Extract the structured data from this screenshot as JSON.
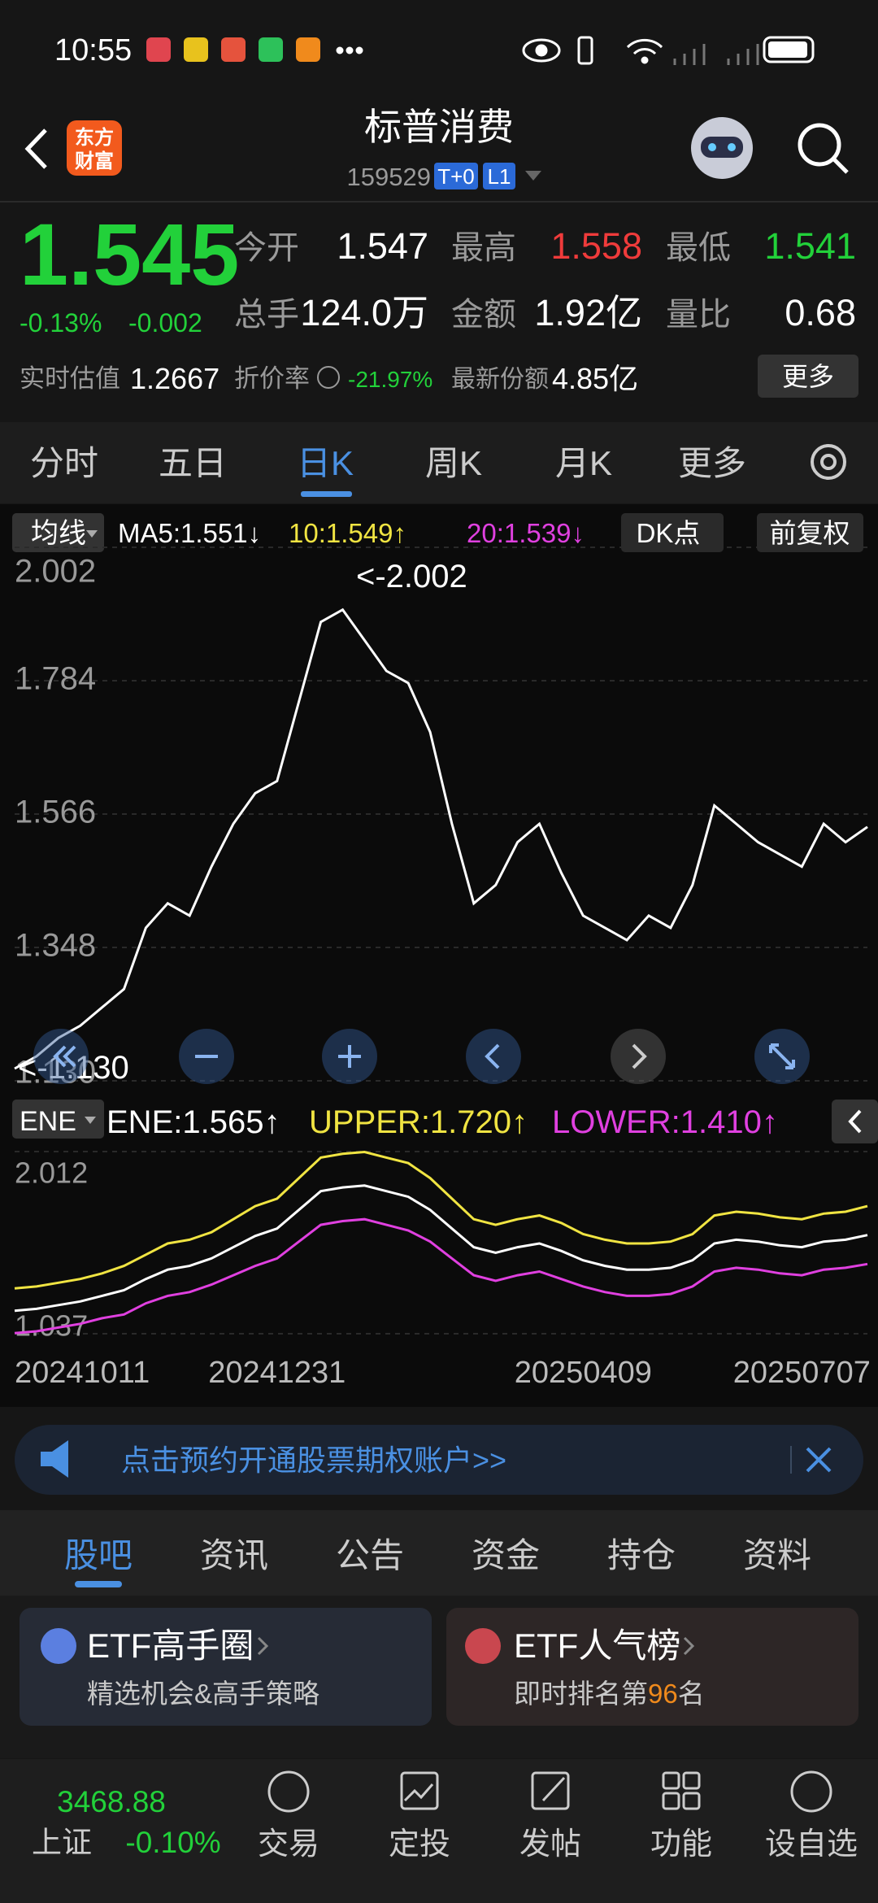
{
  "status_bar": {
    "time": "10:55"
  },
  "header": {
    "logo": [
      "东方",
      "财富"
    ],
    "title": "标普消费",
    "code": "159529",
    "badges": [
      "T+0",
      "L1"
    ]
  },
  "quote": {
    "price": "1.545",
    "change_pct": "-0.13%",
    "change": "-0.002",
    "fields": [
      {
        "label": "今开",
        "value": "1.547"
      },
      {
        "label": "最高",
        "value": "1.558"
      },
      {
        "label": "最低",
        "value": "1.541"
      },
      {
        "label": "总手",
        "value": "124.0万"
      },
      {
        "label": "金额",
        "value": "1.92亿"
      },
      {
        "label": "量比",
        "value": "0.68"
      }
    ],
    "estimate": {
      "label": "实时估值",
      "value": "1.2667"
    },
    "discount": {
      "label": "折价率",
      "value": "-21.97%"
    },
    "shares": {
      "label": "最新份额",
      "value": "4.85亿"
    },
    "more": "更多"
  },
  "period_tabs": [
    "分时",
    "五日",
    "日K",
    "周K",
    "月K",
    "更多"
  ],
  "indicator_bar": {
    "ma_button": "均线",
    "ma5": "MA5:1.551↓",
    "ma10": "10:1.549↑",
    "ma20": "20:1.539↓",
    "dk": "DK点",
    "adjust": "前复权"
  },
  "ene_bar": {
    "button": "ENE",
    "ene": "ENE:1.565↑",
    "upper": "UPPER:1.720↑",
    "lower": "LOWER:1.410↑"
  },
  "chart_data": [
    {
      "type": "line",
      "color": "#ffffff",
      "values": [
        1.15,
        1.17,
        1.2,
        1.22,
        1.25,
        1.28,
        1.38,
        1.42,
        1.4,
        1.48,
        1.55,
        1.6,
        1.62,
        1.75,
        1.88,
        1.9,
        1.85,
        1.8,
        1.78,
        1.7,
        1.55,
        1.42,
        1.45,
        1.52,
        1.55,
        1.47,
        1.4,
        1.38,
        1.36,
        1.4,
        1.38,
        1.45,
        1.58,
        1.55,
        1.52,
        1.5,
        1.48,
        1.55,
        1.52,
        1.545
      ],
      "ylim": [
        1.13,
        2.002
      ],
      "yticks": [
        {
          "value": 1.13,
          "label": "1.130"
        },
        1.348,
        1.566,
        1.784,
        2.002
      ],
      "grid": true,
      "annotations": [
        "<-2.002",
        "<-1.130"
      ]
    },
    {
      "type": "line",
      "categories": [
        "20241011",
        null,
        null,
        null,
        null,
        null,
        null,
        null,
        null,
        null,
        null,
        null,
        "20241231",
        null,
        null,
        null,
        null,
        null,
        null,
        null,
        null,
        null,
        null,
        null,
        null,
        null,
        "20250409",
        null,
        null,
        null,
        null,
        null,
        null,
        null,
        null,
        null,
        "20250707",
        null,
        null,
        null
      ],
      "series": [
        {
          "color": "#ffffff",
          "values": [
            1.16,
            1.17,
            1.19,
            1.21,
            1.24,
            1.27,
            1.33,
            1.38,
            1.4,
            1.44,
            1.5,
            1.56,
            1.6,
            1.7,
            1.8,
            1.82,
            1.83,
            1.8,
            1.77,
            1.7,
            1.6,
            1.5,
            1.47,
            1.5,
            1.52,
            1.48,
            1.43,
            1.4,
            1.38,
            1.38,
            1.39,
            1.43,
            1.52,
            1.54,
            1.53,
            1.51,
            1.5,
            1.53,
            1.54,
            1.565
          ]
        },
        {
          "color": "#f0e442",
          "values": [
            1.28,
            1.29,
            1.31,
            1.33,
            1.36,
            1.4,
            1.46,
            1.52,
            1.54,
            1.58,
            1.65,
            1.72,
            1.76,
            1.87,
            1.98,
            2.0,
            2.01,
            1.98,
            1.95,
            1.87,
            1.76,
            1.65,
            1.62,
            1.65,
            1.67,
            1.63,
            1.57,
            1.54,
            1.52,
            1.52,
            1.53,
            1.57,
            1.67,
            1.69,
            1.68,
            1.66,
            1.65,
            1.68,
            1.69,
            1.72
          ]
        },
        {
          "color": "#e040e0",
          "values": [
            1.04,
            1.05,
            1.07,
            1.09,
            1.12,
            1.14,
            1.2,
            1.24,
            1.26,
            1.3,
            1.35,
            1.4,
            1.44,
            1.53,
            1.62,
            1.64,
            1.65,
            1.62,
            1.59,
            1.53,
            1.44,
            1.35,
            1.32,
            1.35,
            1.37,
            1.33,
            1.29,
            1.26,
            1.24,
            1.24,
            1.25,
            1.29,
            1.37,
            1.39,
            1.38,
            1.36,
            1.35,
            1.38,
            1.39,
            1.41
          ]
        }
      ],
      "ylim": [
        1.037,
        2.012
      ],
      "yticks": [
        1.037,
        2.012
      ]
    }
  ],
  "banner": {
    "text": "点击预约开通股票期权账户>>"
  },
  "content_tabs": [
    "股吧",
    "资讯",
    "公告",
    "资金",
    "持仓",
    "资料"
  ],
  "cards": [
    {
      "title": "ETF高手圈",
      "subtitle": "精选机会&高手策略"
    },
    {
      "title": "ETF人气榜",
      "subtitle_prefix": "即时排名第",
      "rank": "96",
      "subtitle_suffix": "名"
    }
  ],
  "bottom_nav": {
    "index_value": "3468.88",
    "index_name": "上证",
    "index_change": "-0.10%",
    "items": [
      "交易",
      "定投",
      "发帖",
      "功能",
      "设自选"
    ]
  }
}
